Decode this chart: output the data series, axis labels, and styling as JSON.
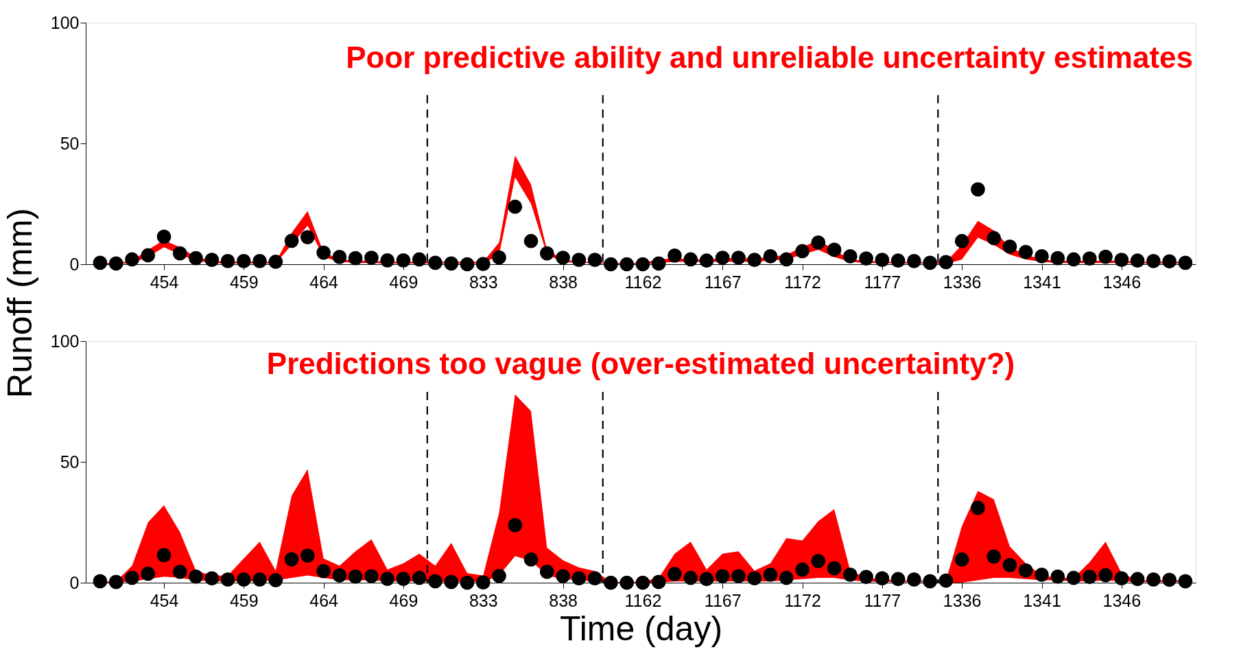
{
  "chart_data": [
    {
      "type": "scatter",
      "ylabel": "Runoff (mm)",
      "annotations": [
        "Poor predictive ability and unreliable uncertainty estimates"
      ],
      "categories": [
        null,
        null,
        null,
        null,
        "454",
        null,
        null,
        null,
        null,
        "459",
        null,
        null,
        null,
        null,
        "464",
        null,
        null,
        null,
        null,
        "469",
        null,
        null,
        null,
        null,
        "833",
        null,
        null,
        null,
        null,
        "838",
        null,
        null,
        null,
        null,
        "1162",
        null,
        null,
        null,
        null,
        "1167",
        null,
        null,
        null,
        null,
        "1172",
        null,
        null,
        null,
        null,
        "1177",
        null,
        null,
        null,
        null,
        "1336",
        null,
        null,
        null,
        null,
        "1341",
        null,
        null,
        null,
        null,
        "1346",
        null,
        null,
        null,
        null
      ],
      "ylim": [
        0,
        100
      ],
      "yticks": [
        0,
        50,
        100
      ],
      "series": [
        {
          "color": "#000000",
          "marker": "circle",
          "values": [
            0.6,
            0.3,
            2,
            3.7,
            11.4,
            4.5,
            2.5,
            1.8,
            1.3,
            1.3,
            1.3,
            1,
            9.7,
            11.2,
            4.8,
            3,
            2.5,
            2.7,
            1.6,
            1.6,
            2,
            0.6,
            0.3,
            0,
            0.1,
            2.8,
            23.8,
            9.6,
            4.5,
            2.7,
            1.8,
            1.8,
            0,
            0,
            0,
            0.3,
            3.6,
            2,
            1.5,
            2.7,
            2.7,
            1.8,
            3.3,
            2,
            5.4,
            9,
            6,
            3.3,
            2.4,
            1.8,
            1.5,
            1.3,
            0.6,
            0.9,
            9.6,
            31,
            10.8,
            7.3,
            5.1,
            3.3,
            2.5,
            2,
            2.4,
            3.1,
            1.8,
            1.5,
            1.3,
            1.2,
            0.6
          ],
          "upper": [
            0.5,
            0.5,
            1.5,
            6,
            10,
            7,
            3,
            1.5,
            1,
            1,
            1,
            1,
            13,
            22,
            5,
            2,
            1.5,
            1.5,
            1,
            1,
            1,
            1,
            1,
            1,
            1,
            9,
            45,
            33,
            6,
            2,
            1,
            1,
            0.5,
            0.5,
            0.5,
            2,
            2.5,
            2,
            2,
            2.5,
            2.5,
            2.5,
            3,
            4,
            7,
            10,
            6,
            2,
            1.5,
            1,
            1,
            0.8,
            0.8,
            1,
            8,
            18,
            14,
            7,
            4,
            2,
            1.5,
            1.5,
            1.5,
            1.5,
            1.5,
            1,
            1,
            1,
            1
          ],
          "lower": [
            0,
            0,
            0.5,
            3,
            7,
            4,
            1.5,
            0.5,
            0.3,
            0.3,
            0.3,
            0.3,
            8,
            16,
            3,
            1,
            0.5,
            0.5,
            0.3,
            0.3,
            0.3,
            0.3,
            0.3,
            0.3,
            0.3,
            4,
            36,
            25,
            4,
            1,
            0.5,
            0.5,
            0,
            0,
            0,
            0.5,
            1,
            1,
            1,
            1,
            1,
            1,
            1.5,
            2,
            4,
            6,
            3,
            1,
            0.5,
            0.5,
            0.3,
            0.3,
            0.3,
            0,
            2,
            11,
            8,
            4,
            2,
            1,
            0.5,
            0.5,
            0.5,
            0.5,
            0.5,
            0.3,
            0.3,
            0.3,
            0.3
          ]
        }
      ]
    },
    {
      "type": "scatter",
      "xlabel": "Time (day)",
      "annotations": [
        "Predictions too vague (over-estimated uncertainty?)"
      ],
      "categories": [
        null,
        null,
        null,
        null,
        "454",
        null,
        null,
        null,
        null,
        "459",
        null,
        null,
        null,
        null,
        "464",
        null,
        null,
        null,
        null,
        "469",
        null,
        null,
        null,
        null,
        "833",
        null,
        null,
        null,
        null,
        "838",
        null,
        null,
        null,
        null,
        "1162",
        null,
        null,
        null,
        null,
        "1167",
        null,
        null,
        null,
        null,
        "1172",
        null,
        null,
        null,
        null,
        "1177",
        null,
        null,
        null,
        null,
        "1336",
        null,
        null,
        null,
        null,
        "1341",
        null,
        null,
        null,
        null,
        "1346",
        null,
        null,
        null,
        null
      ],
      "ylim": [
        0,
        100
      ],
      "yticks": [
        0,
        50,
        100
      ],
      "series": [
        {
          "color": "#000000",
          "marker": "circle",
          "values": [
            0.6,
            0.3,
            2,
            3.7,
            11.4,
            4.5,
            2.5,
            1.8,
            1.3,
            1.3,
            1.3,
            1,
            9.7,
            11.2,
            4.8,
            3,
            2.5,
            2.7,
            1.6,
            1.6,
            2,
            0.6,
            0.3,
            0,
            0.1,
            2.8,
            23.8,
            9.6,
            4.5,
            2.7,
            1.8,
            1.8,
            0,
            0,
            0,
            0.3,
            3.6,
            2,
            1.5,
            2.7,
            2.7,
            1.8,
            3.3,
            2,
            5.4,
            9,
            6,
            3.3,
            2.4,
            1.8,
            1.5,
            1.3,
            0.6,
            0.9,
            9.6,
            31,
            10.8,
            7.3,
            5.1,
            3.3,
            2.5,
            2,
            2.4,
            3.1,
            1.8,
            1.5,
            1.3,
            1.2,
            0.6
          ],
          "upper": [
            0.5,
            0.5,
            7,
            25,
            32,
            21,
            5,
            3,
            3,
            10,
            17,
            5,
            36,
            47,
            10,
            7,
            13,
            18,
            5.5,
            8,
            12,
            7,
            16.5,
            4,
            3,
            29,
            78,
            71,
            14.5,
            9.3,
            6.3,
            4.8,
            0.3,
            0.3,
            0.5,
            2,
            12,
            17,
            5.5,
            12,
            13,
            5,
            8,
            18.5,
            17.5,
            25.5,
            30.5,
            5,
            2,
            1.5,
            1,
            0.8,
            0.8,
            1,
            23.5,
            38,
            34.5,
            15,
            8,
            3,
            2,
            2,
            8.5,
            17,
            4,
            1,
            1,
            1,
            1
          ],
          "lower": [
            0,
            0,
            0.5,
            1.5,
            2.5,
            2,
            1,
            0.5,
            0.5,
            0.5,
            0.5,
            1,
            2,
            3,
            2,
            1,
            1,
            1,
            0.5,
            0.5,
            0.5,
            0.3,
            0.3,
            0.3,
            0.3,
            3,
            11,
            9,
            3,
            1.5,
            1,
            0.5,
            0,
            0,
            0,
            0,
            0.5,
            0.5,
            0.5,
            0.5,
            0.5,
            0.5,
            0.5,
            1,
            1.5,
            2,
            2,
            1,
            0.5,
            0.3,
            0.3,
            0.3,
            0.3,
            0,
            0,
            1,
            2,
            2,
            1.5,
            1,
            1,
            0.5,
            0.5,
            1,
            0.5,
            0.3,
            0.3,
            0.3,
            0.3
          ]
        }
      ]
    }
  ]
}
